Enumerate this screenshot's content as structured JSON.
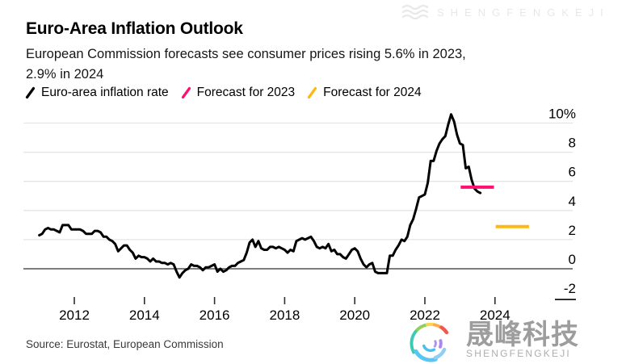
{
  "header": {
    "title": "Euro-Area Inflation Outlook",
    "subtitle_line1": "European Commission forecasts see consumer prices rising 5.6% in 2023,",
    "subtitle_line2": "2.9% in 2024"
  },
  "legend": {
    "items": [
      {
        "label": "Euro-area inflation rate",
        "color": "#000000"
      },
      {
        "label": "Forecast for 2023",
        "color": "#fc1072"
      },
      {
        "label": "Forecast for 2024",
        "color": "#fdb813"
      }
    ]
  },
  "chart_data": {
    "type": "line",
    "title": "Euro-Area Inflation Outlook",
    "unit": "%",
    "ylim": [
      -2,
      10
    ],
    "grid": "horizontal",
    "zero_line_color": "#7e7e7e",
    "gridline_color": "#e4e4e4",
    "y_ticks": [
      {
        "value": 10,
        "label": "10%"
      },
      {
        "value": 8,
        "label": "8"
      },
      {
        "value": 6,
        "label": "6"
      },
      {
        "value": 4,
        "label": "4"
      },
      {
        "value": 2,
        "label": "2"
      },
      {
        "value": 0,
        "label": "0"
      },
      {
        "value": -2,
        "label": "-2"
      }
    ],
    "x_ticks": [
      {
        "value": 2012,
        "label": "2012"
      },
      {
        "value": 2014,
        "label": "2014"
      },
      {
        "value": 2016,
        "label": "2016"
      },
      {
        "value": 2018,
        "label": "2018"
      },
      {
        "value": 2020,
        "label": "2020"
      },
      {
        "value": 2022,
        "label": "2022"
      },
      {
        "value": 2024,
        "label": "2024"
      }
    ],
    "series": [
      {
        "name": "Euro-area inflation rate",
        "color": "#000000",
        "start_year": 2011,
        "frequency": "monthly",
        "values": [
          2.3,
          2.4,
          2.7,
          2.8,
          2.7,
          2.7,
          2.6,
          2.5,
          3.0,
          3.0,
          3.0,
          2.7,
          2.7,
          2.7,
          2.7,
          2.6,
          2.4,
          2.4,
          2.4,
          2.6,
          2.6,
          2.5,
          2.2,
          2.2,
          2.0,
          1.9,
          1.7,
          1.2,
          1.4,
          1.6,
          1.6,
          1.3,
          1.1,
          0.7,
          0.9,
          0.8,
          0.8,
          0.7,
          0.5,
          0.7,
          0.5,
          0.5,
          0.4,
          0.4,
          0.3,
          0.4,
          0.3,
          -0.2,
          -0.6,
          -0.3,
          -0.1,
          0.0,
          0.3,
          0.2,
          0.2,
          0.1,
          -0.1,
          0.1,
          0.1,
          0.2,
          0.3,
          -0.2,
          0.0,
          -0.2,
          -0.1,
          0.1,
          0.2,
          0.2,
          0.4,
          0.5,
          0.6,
          1.1,
          1.8,
          2.0,
          1.5,
          1.9,
          1.4,
          1.3,
          1.3,
          1.5,
          1.5,
          1.4,
          1.5,
          1.4,
          1.3,
          1.1,
          1.3,
          1.2,
          1.9,
          2.0,
          2.1,
          2.0,
          2.1,
          2.2,
          1.9,
          1.5,
          1.4,
          1.5,
          1.4,
          1.7,
          1.2,
          1.3,
          1.0,
          1.0,
          0.8,
          0.7,
          1.0,
          1.3,
          1.4,
          1.2,
          0.7,
          0.3,
          0.1,
          0.3,
          0.4,
          -0.2,
          -0.3,
          -0.3,
          -0.3,
          -0.3,
          0.9,
          0.9,
          1.3,
          1.6,
          2.0,
          1.9,
          2.2,
          3.0,
          3.4,
          4.1,
          4.9,
          5.0,
          5.1,
          5.9,
          7.4,
          7.4,
          8.1,
          8.6,
          8.9,
          9.1,
          9.9,
          10.6,
          10.1,
          9.2,
          8.6,
          8.5,
          6.9,
          7.0,
          6.1,
          5.5,
          5.3,
          5.2
        ]
      }
    ],
    "forecasts": [
      {
        "name": "Forecast for 2023",
        "color": "#fc1072",
        "value": 5.6,
        "from_year": 2023.02,
        "to_year": 2023.97
      },
      {
        "name": "Forecast for 2024",
        "color": "#fdb813",
        "value": 2.9,
        "from_year": 2024.02,
        "to_year": 2024.97
      }
    ]
  },
  "footer": {
    "source": "Source: Eurostat, European Commission"
  },
  "watermarks": {
    "top_right": {
      "text": "SHENGFENGKEJI"
    },
    "bottom_right": {
      "text_cn": "晟峰科技",
      "text_en": "SHENGFENGKEJI",
      "logo_colors": [
        "#8ed058",
        "#ffd44d",
        "#ffa947",
        "#f2564d",
        "#3ec9b4",
        "#59c5f2",
        "#8ecff5",
        "#a98ae8",
        "#49c0ee",
        "#b58ff0"
      ]
    }
  }
}
